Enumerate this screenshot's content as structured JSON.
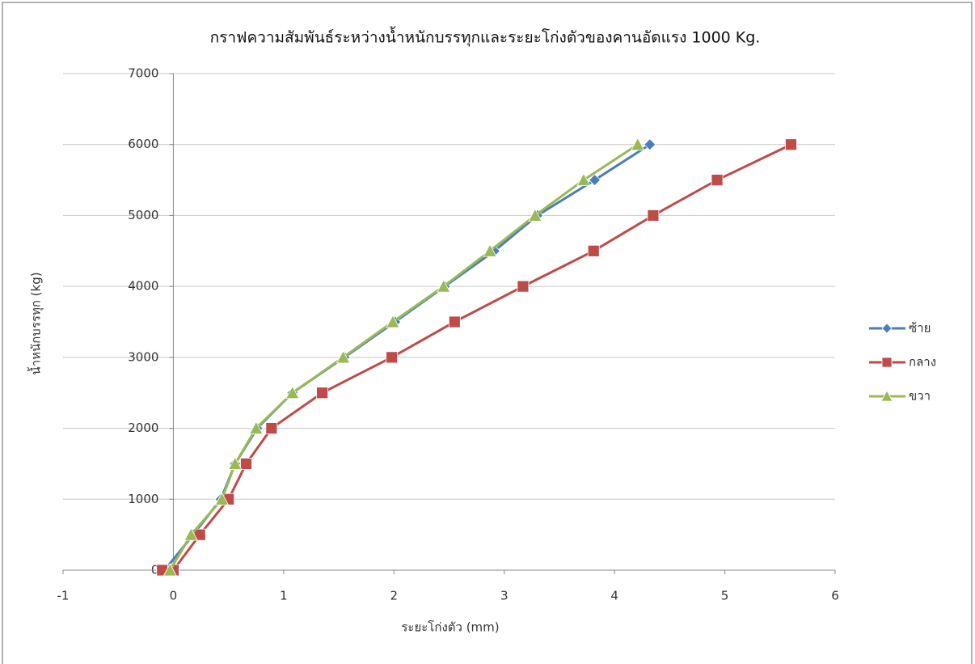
{
  "chart_data": {
    "type": "line",
    "title": "กราฟความสัมพันธ์ระหว่างน้ำหนักบรรทุกและระยะโก่งตัวของคานอัดแรง 1000 Kg.",
    "xlabel": "ระยะโก่งตัว (mm)",
    "ylabel": "น้ำหนักบรรทุก (kg)",
    "xlim": [
      -1,
      6
    ],
    "xticks": [
      -1,
      0,
      1,
      2,
      3,
      4,
      5,
      6
    ],
    "ylim": [
      0,
      7000
    ],
    "yticks": [
      0,
      1000,
      2000,
      3000,
      4000,
      5000,
      6000,
      7000
    ],
    "grid": true,
    "legend": "right",
    "series": [
      {
        "name": "ซ้าย",
        "color": "#4a7ebb",
        "marker": "diamond",
        "x": [
          -0.08,
          0.18,
          0.43,
          0.56,
          0.76,
          1.08,
          1.55,
          2.01,
          2.46,
          2.91,
          3.3,
          3.82,
          4.32
        ],
        "values": [
          0,
          500,
          1000,
          1500,
          2000,
          2500,
          3000,
          3500,
          4000,
          4500,
          5000,
          5500,
          6000
        ]
      },
      {
        "name": "กลาง",
        "color": "#be4b48",
        "marker": "square",
        "x": [
          -0.1,
          0.0,
          0.24,
          0.5,
          0.66,
          0.89,
          1.35,
          1.98,
          2.55,
          3.17,
          3.81,
          4.35,
          4.93,
          5.6
        ],
        "values": [
          0,
          0,
          500,
          1000,
          1500,
          2000,
          2500,
          3000,
          3500,
          4000,
          4500,
          5000,
          5500,
          6000
        ]
      },
      {
        "name": "ขวา",
        "color": "#98b954",
        "marker": "triangle",
        "x": [
          -0.03,
          0.16,
          0.44,
          0.56,
          0.75,
          1.08,
          1.54,
          1.99,
          2.45,
          2.87,
          3.28,
          3.72,
          4.21
        ],
        "values": [
          0,
          500,
          1000,
          1500,
          2000,
          2500,
          3000,
          3500,
          4000,
          4500,
          5000,
          5500,
          6000
        ]
      }
    ]
  }
}
